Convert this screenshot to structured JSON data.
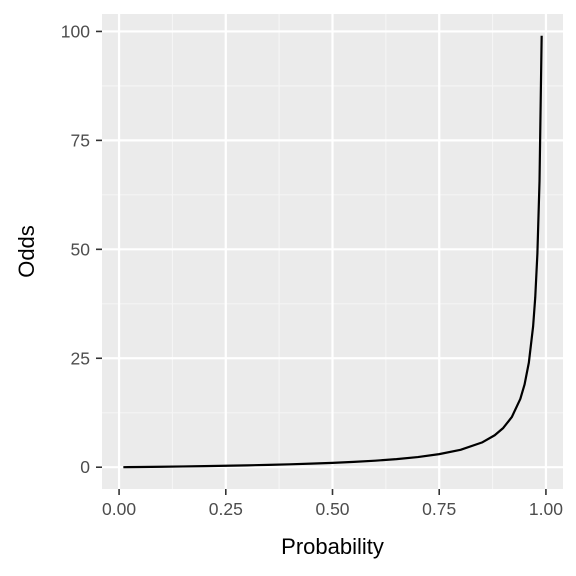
{
  "chart_data": {
    "type": "line",
    "title": "",
    "xlabel": "Probability",
    "ylabel": "Odds",
    "xlim": [
      0,
      1
    ],
    "ylim": [
      0,
      100
    ],
    "x_ticks": [
      0.0,
      0.25,
      0.5,
      0.75,
      1.0
    ],
    "x_tick_labels": [
      "0.00",
      "0.25",
      "0.50",
      "0.75",
      "1.00"
    ],
    "y_ticks": [
      0,
      25,
      50,
      75,
      100
    ],
    "y_tick_labels": [
      "0",
      "25",
      "50",
      "75",
      "100"
    ],
    "grid": true,
    "legend": "none",
    "series": [
      {
        "line_color": "#000000",
        "x": [
          0.01,
          0.05,
          0.1,
          0.15,
          0.2,
          0.25,
          0.3,
          0.35,
          0.4,
          0.45,
          0.5,
          0.55,
          0.6,
          0.65,
          0.7,
          0.75,
          0.8,
          0.85,
          0.88,
          0.9,
          0.92,
          0.94,
          0.95,
          0.96,
          0.97,
          0.975,
          0.98,
          0.985,
          0.99
        ],
        "y": [
          0.0101,
          0.0526,
          0.1111,
          0.1765,
          0.25,
          0.3333,
          0.4286,
          0.5385,
          0.6667,
          0.8182,
          1.0,
          1.2222,
          1.5,
          1.8571,
          2.3333,
          3.0,
          4.0,
          5.6667,
          7.3333,
          9.0,
          11.5,
          15.6667,
          19.0,
          24.0,
          32.3333,
          39.0,
          49.0,
          65.6667,
          99.0
        ]
      }
    ],
    "colors": {
      "panel_background": "#ebebeb",
      "grid_major": "#ffffff",
      "grid_minor": "#f5f5f5",
      "tick_text": "#4d4d4d",
      "axis_title": "#000000"
    }
  }
}
